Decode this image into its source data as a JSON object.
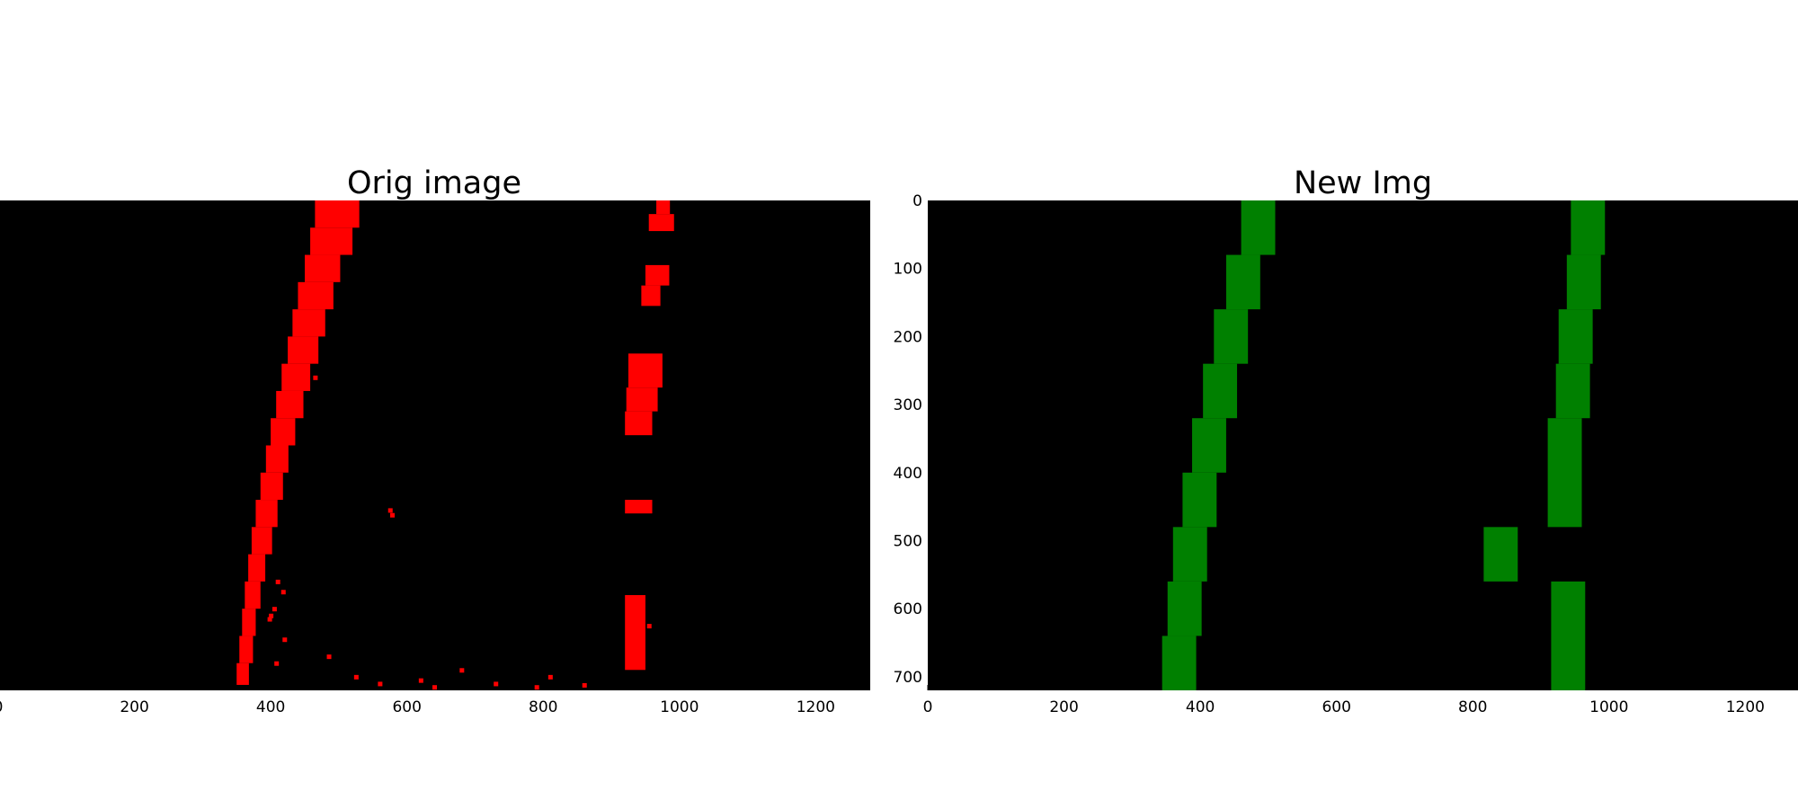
{
  "chart_data": [
    {
      "type": "image",
      "title": "Orig image",
      "background": "#000000",
      "pixel_color": "#ff0000",
      "xlim": [
        0,
        1280
      ],
      "ylim": [
        720,
        0
      ],
      "x_ticks": [
        0,
        200,
        400,
        600,
        800,
        1000,
        1200
      ],
      "x_tick_labels": [
        "0",
        "200",
        "400",
        "600",
        "800",
        "1000",
        "1200"
      ],
      "y_ticks": [],
      "y_tick_labels": [],
      "lane_strips": [
        {
          "name": "left-lane",
          "segments": [
            {
              "y": [
                0,
                40
              ],
              "x": [
                465,
                530
              ]
            },
            {
              "y": [
                40,
                80
              ],
              "x": [
                458,
                520
              ]
            },
            {
              "y": [
                80,
                120
              ],
              "x": [
                450,
                502
              ]
            },
            {
              "y": [
                120,
                160
              ],
              "x": [
                440,
                492
              ]
            },
            {
              "y": [
                160,
                200
              ],
              "x": [
                432,
                480
              ]
            },
            {
              "y": [
                200,
                240
              ],
              "x": [
                425,
                470
              ]
            },
            {
              "y": [
                240,
                280
              ],
              "x": [
                416,
                458
              ]
            },
            {
              "y": [
                280,
                320
              ],
              "x": [
                408,
                448
              ]
            },
            {
              "y": [
                320,
                360
              ],
              "x": [
                400,
                436
              ]
            },
            {
              "y": [
                360,
                400
              ],
              "x": [
                393,
                426
              ]
            },
            {
              "y": [
                400,
                440
              ],
              "x": [
                385,
                418
              ]
            },
            {
              "y": [
                440,
                480
              ],
              "x": [
                378,
                410
              ]
            },
            {
              "y": [
                480,
                520
              ],
              "x": [
                372,
                402
              ]
            },
            {
              "y": [
                520,
                560
              ],
              "x": [
                367,
                392
              ]
            },
            {
              "y": [
                560,
                600
              ],
              "x": [
                362,
                385
              ]
            },
            {
              "y": [
                600,
                640
              ],
              "x": [
                358,
                378
              ]
            },
            {
              "y": [
                640,
                680
              ],
              "x": [
                354,
                374
              ]
            },
            {
              "y": [
                680,
                712
              ],
              "x": [
                350,
                368
              ]
            }
          ]
        },
        {
          "name": "right-lane",
          "segments": [
            {
              "y": [
                0,
                20
              ],
              "x": [
                966,
                986
              ]
            },
            {
              "y": [
                20,
                45
              ],
              "x": [
                955,
                992
              ]
            },
            {
              "y": [
                95,
                125
              ],
              "x": [
                950,
                985
              ]
            },
            {
              "y": [
                125,
                155
              ],
              "x": [
                944,
                972
              ]
            },
            {
              "y": [
                225,
                275
              ],
              "x": [
                925,
                975
              ]
            },
            {
              "y": [
                275,
                310
              ],
              "x": [
                922,
                968
              ]
            },
            {
              "y": [
                310,
                345
              ],
              "x": [
                920,
                960
              ]
            },
            {
              "y": [
                440,
                460
              ],
              "x": [
                920,
                960
              ]
            },
            {
              "y": [
                580,
                690
              ],
              "x": [
                920,
                950
              ]
            }
          ]
        }
      ],
      "specks": [
        {
          "x": 465,
          "y": 260
        },
        {
          "x": 575,
          "y": 455
        },
        {
          "x": 578,
          "y": 462
        },
        {
          "x": 410,
          "y": 560
        },
        {
          "x": 418,
          "y": 575
        },
        {
          "x": 405,
          "y": 600
        },
        {
          "x": 398,
          "y": 615
        },
        {
          "x": 400,
          "y": 610
        },
        {
          "x": 420,
          "y": 645
        },
        {
          "x": 408,
          "y": 680
        },
        {
          "x": 485,
          "y": 670
        },
        {
          "x": 525,
          "y": 700
        },
        {
          "x": 560,
          "y": 710
        },
        {
          "x": 620,
          "y": 705
        },
        {
          "x": 680,
          "y": 690
        },
        {
          "x": 730,
          "y": 710
        },
        {
          "x": 790,
          "y": 715
        },
        {
          "x": 810,
          "y": 700
        },
        {
          "x": 860,
          "y": 712
        },
        {
          "x": 955,
          "y": 625
        },
        {
          "x": 640,
          "y": 715
        }
      ]
    },
    {
      "type": "image",
      "title": "New Img",
      "background": "#000000",
      "window_color": "#008000",
      "xlim": [
        0,
        1280
      ],
      "ylim": [
        720,
        0
      ],
      "x_ticks": [
        0,
        200,
        400,
        600,
        800,
        1000,
        1200
      ],
      "x_tick_labels": [
        "0",
        "200",
        "400",
        "600",
        "800",
        "1000",
        "1200"
      ],
      "y_ticks": [
        0,
        100,
        200,
        300,
        400,
        500,
        600,
        700
      ],
      "y_tick_labels": [
        "0",
        "100",
        "200",
        "300",
        "400",
        "500",
        "600",
        "700"
      ],
      "windows": [
        {
          "x": [
            460,
            510
          ],
          "y": [
            0,
            80
          ]
        },
        {
          "x": [
            438,
            488
          ],
          "y": [
            80,
            160
          ]
        },
        {
          "x": [
            420,
            470
          ],
          "y": [
            160,
            240
          ]
        },
        {
          "x": [
            404,
            454
          ],
          "y": [
            240,
            320
          ]
        },
        {
          "x": [
            388,
            438
          ],
          "y": [
            320,
            400
          ]
        },
        {
          "x": [
            374,
            424
          ],
          "y": [
            400,
            480
          ]
        },
        {
          "x": [
            360,
            410
          ],
          "y": [
            480,
            560
          ]
        },
        {
          "x": [
            352,
            402
          ],
          "y": [
            560,
            640
          ]
        },
        {
          "x": [
            344,
            394
          ],
          "y": [
            640,
            720
          ]
        },
        {
          "x": [
            944,
            994
          ],
          "y": [
            0,
            80
          ]
        },
        {
          "x": [
            938,
            988
          ],
          "y": [
            80,
            160
          ]
        },
        {
          "x": [
            926,
            976
          ],
          "y": [
            160,
            240
          ]
        },
        {
          "x": [
            922,
            972
          ],
          "y": [
            240,
            320
          ]
        },
        {
          "x": [
            910,
            960
          ],
          "y": [
            320,
            480
          ]
        },
        {
          "x": [
            816,
            866
          ],
          "y": [
            480,
            560
          ]
        },
        {
          "x": [
            915,
            965
          ],
          "y": [
            560,
            720
          ]
        }
      ]
    }
  ]
}
